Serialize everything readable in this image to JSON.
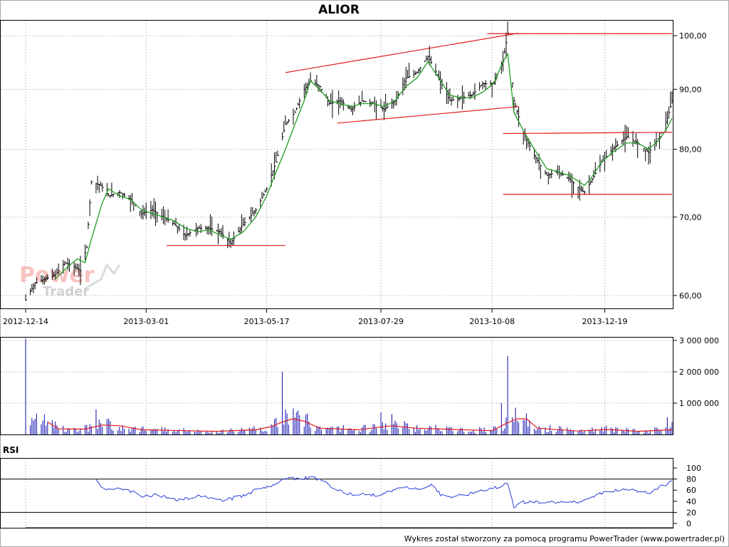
{
  "watermark": {
    "power": "Power",
    "trader": "Trader"
  },
  "footer": "Wykres został stworzony za pomocą programu PowerTrader (www.powertrader.pl)",
  "colors": {
    "price": "#000000",
    "ma": "#1f9e1f",
    "trendline": "#e21b1b",
    "volume": "#1f1fb4",
    "volume_ma": "#e21b1b",
    "rsi": "#2a3fd6",
    "grid": "#9a9a9a"
  },
  "chart_data": [
    {
      "type": "ohlc",
      "title": "ALIOR",
      "scale": "log",
      "ylim": [
        58.5,
        103
      ],
      "y_ticks": [
        "60,00",
        "70,00",
        "80,00",
        "90,00",
        "100,00"
      ],
      "x_ticks": [
        "2012-12-14",
        "2013-03-01",
        "2013-05-17",
        "2013-07-29",
        "2013-10-08",
        "2013-12-19"
      ],
      "x_range": [
        "2012-12-14",
        "2014-01-31"
      ],
      "grid": true,
      "series": [
        {
          "kind": "close",
          "points": [
            [
              "2012-12-14",
              59.5
            ],
            [
              "2012-12-20",
              61.5
            ],
            [
              "2013-01-02",
              62.5
            ],
            [
              "2013-01-08",
              64
            ],
            [
              "2013-01-14",
              63.5
            ],
            [
              "2013-01-18",
              63
            ],
            [
              "2013-01-22",
              66
            ],
            [
              "2013-01-25",
              75
            ],
            [
              "2013-01-31",
              74.5
            ],
            [
              "2013-02-05",
              73
            ],
            [
              "2013-02-12",
              73.5
            ],
            [
              "2013-02-19",
              72.5
            ],
            [
              "2013-02-26",
              70.5
            ],
            [
              "2013-03-05",
              71
            ],
            [
              "2013-03-12",
              70
            ],
            [
              "2013-03-19",
              69
            ],
            [
              "2013-03-26",
              67.5
            ],
            [
              "2013-04-03",
              68.5
            ],
            [
              "2013-04-10",
              68.5
            ],
            [
              "2013-04-17",
              68
            ],
            [
              "2013-04-24",
              66.5
            ],
            [
              "2013-05-02",
              69
            ],
            [
              "2013-05-10",
              71
            ],
            [
              "2013-05-17",
              74
            ],
            [
              "2013-05-23",
              78
            ],
            [
              "2013-05-29",
              84
            ],
            [
              "2013-06-04",
              86
            ],
            [
              "2013-06-10",
              90
            ],
            [
              "2013-06-14",
              91.5
            ],
            [
              "2013-06-20",
              90.5
            ],
            [
              "2013-06-26",
              87.5
            ],
            [
              "2013-07-03",
              88
            ],
            [
              "2013-07-10",
              86.5
            ],
            [
              "2013-07-17",
              88
            ],
            [
              "2013-07-24",
              87.5
            ],
            [
              "2013-07-31",
              86.5
            ],
            [
              "2013-08-07",
              88
            ],
            [
              "2013-08-14",
              92
            ],
            [
              "2013-08-21",
              93
            ],
            [
              "2013-08-28",
              96
            ],
            [
              "2013-09-04",
              92
            ],
            [
              "2013-09-11",
              88
            ],
            [
              "2013-09-18",
              88.5
            ],
            [
              "2013-09-25",
              89
            ],
            [
              "2013-10-02",
              91
            ],
            [
              "2013-10-09",
              91
            ],
            [
              "2013-10-15",
              95
            ],
            [
              "2013-10-18",
              100.5
            ],
            [
              "2013-10-22",
              88
            ],
            [
              "2013-10-28",
              82.5
            ],
            [
              "2013-11-04",
              79
            ],
            [
              "2013-11-12",
              76
            ],
            [
              "2013-11-19",
              76.5
            ],
            [
              "2013-11-26",
              75.5
            ],
            [
              "2013-12-03",
              74
            ],
            [
              "2013-12-06",
              73.5
            ],
            [
              "2013-12-10",
              75
            ],
            [
              "2013-12-17",
              78
            ],
            [
              "2013-12-24",
              80
            ],
            [
              "2014-01-02",
              82
            ],
            [
              "2014-01-09",
              81
            ],
            [
              "2014-01-16",
              79.5
            ],
            [
              "2014-01-23",
              82
            ],
            [
              "2014-01-28",
              85
            ],
            [
              "2014-01-31",
              88
            ]
          ]
        },
        {
          "kind": "moving_average",
          "points": [
            [
              "2013-01-02",
              62
            ],
            [
              "2013-01-10",
              63.5
            ],
            [
              "2013-01-16",
              64.5
            ],
            [
              "2013-01-21",
              64
            ],
            [
              "2013-01-25",
              67
            ],
            [
              "2013-02-01",
              72
            ],
            [
              "2013-02-05",
              74
            ],
            [
              "2013-02-12",
              73
            ],
            [
              "2013-02-19",
              72.5
            ],
            [
              "2013-02-26",
              71
            ],
            [
              "2013-03-05",
              70.5
            ],
            [
              "2013-03-12",
              70
            ],
            [
              "2013-03-19",
              69.5
            ],
            [
              "2013-03-26",
              68.5
            ],
            [
              "2013-04-03",
              68
            ],
            [
              "2013-04-10",
              68.3
            ],
            [
              "2013-04-17",
              67.6
            ],
            [
              "2013-04-24",
              67
            ],
            [
              "2013-05-02",
              68
            ],
            [
              "2013-05-10",
              70
            ],
            [
              "2013-05-17",
              73
            ],
            [
              "2013-05-23",
              76.5
            ],
            [
              "2013-05-29",
              80
            ],
            [
              "2013-06-04",
              84
            ],
            [
              "2013-06-10",
              88
            ],
            [
              "2013-06-14",
              91.5
            ],
            [
              "2013-06-20",
              90
            ],
            [
              "2013-06-26",
              88
            ],
            [
              "2013-07-03",
              87.5
            ],
            [
              "2013-07-10",
              87
            ],
            [
              "2013-07-17",
              87.5
            ],
            [
              "2013-07-24",
              87.5
            ],
            [
              "2013-07-31",
              87
            ],
            [
              "2013-08-07",
              88
            ],
            [
              "2013-08-14",
              90.5
            ],
            [
              "2013-08-21",
              92
            ],
            [
              "2013-08-28",
              95
            ],
            [
              "2013-09-04",
              92
            ],
            [
              "2013-09-11",
              89
            ],
            [
              "2013-09-18",
              88.5
            ],
            [
              "2013-09-25",
              88.5
            ],
            [
              "2013-10-02",
              89.5
            ],
            [
              "2013-10-09",
              91
            ],
            [
              "2013-10-15",
              95
            ],
            [
              "2013-10-18",
              96.5
            ],
            [
              "2013-10-22",
              86
            ],
            [
              "2013-10-28",
              83
            ],
            [
              "2013-11-04",
              80
            ],
            [
              "2013-11-12",
              77
            ],
            [
              "2013-11-19",
              76.5
            ],
            [
              "2013-11-26",
              76
            ],
            [
              "2013-12-03",
              75
            ],
            [
              "2013-12-06",
              74.5
            ],
            [
              "2013-12-10",
              75.5
            ],
            [
              "2013-12-17",
              78
            ],
            [
              "2013-12-24",
              79.5
            ],
            [
              "2014-01-02",
              81
            ],
            [
              "2014-01-09",
              81
            ],
            [
              "2014-01-16",
              80
            ],
            [
              "2014-01-23",
              81.5
            ],
            [
              "2014-01-28",
              83.5
            ],
            [
              "2014-01-31",
              85
            ]
          ]
        }
      ],
      "trendlines": [
        {
          "x": [
            "2013-03-14",
            "2013-05-29"
          ],
          "y": [
            66.2,
            66.2
          ]
        },
        {
          "x": [
            "2013-05-29",
            "2013-10-25"
          ],
          "y": [
            93,
            100.5
          ]
        },
        {
          "x": [
            "2013-07-01",
            "2013-10-25"
          ],
          "y": [
            84.2,
            87
          ]
        },
        {
          "x": [
            "2013-10-05",
            "2014-01-31"
          ],
          "y": [
            100.4,
            100.4
          ]
        },
        {
          "x": [
            "2013-10-15",
            "2014-01-31"
          ],
          "y": [
            82.5,
            82.7
          ]
        },
        {
          "x": [
            "2013-10-15",
            "2014-01-31"
          ],
          "y": [
            73.2,
            73.2
          ]
        }
      ]
    },
    {
      "type": "bar",
      "title": "",
      "ylim": [
        0,
        3000000
      ],
      "y_ticks": [
        "1 000 000",
        "2 000 000",
        "3 000 000"
      ],
      "spikes": [
        [
          "2012-12-14",
          3050000
        ],
        [
          "2012-12-20",
          500000
        ],
        [
          "2013-01-28",
          800000
        ],
        [
          "2013-05-27",
          2000000
        ],
        [
          "2013-05-29",
          800000
        ],
        [
          "2013-07-29",
          700000
        ],
        [
          "2013-08-05",
          650000
        ],
        [
          "2013-10-14",
          1000000
        ],
        [
          "2013-10-18",
          2500000
        ],
        [
          "2013-10-21",
          550000
        ],
        [
          "2014-01-28",
          550000
        ],
        [
          "2014-01-31",
          400000
        ]
      ],
      "series": [
        {
          "kind": "volume_average",
          "points": [
            [
              "2012-12-28",
              400000
            ],
            [
              "2013-01-04",
              180000
            ],
            [
              "2013-01-21",
              170000
            ],
            [
              "2013-02-01",
              300000
            ],
            [
              "2013-02-12",
              280000
            ],
            [
              "2013-02-26",
              150000
            ],
            [
              "2013-04-15",
              100000
            ],
            [
              "2013-05-10",
              150000
            ],
            [
              "2013-05-20",
              250000
            ],
            [
              "2013-05-27",
              400000
            ],
            [
              "2013-06-03",
              500000
            ],
            [
              "2013-06-10",
              420000
            ],
            [
              "2013-06-20",
              200000
            ],
            [
              "2013-07-15",
              150000
            ],
            [
              "2013-08-05",
              280000
            ],
            [
              "2013-08-20",
              200000
            ],
            [
              "2013-10-08",
              120000
            ],
            [
              "2013-10-17",
              350000
            ],
            [
              "2013-10-24",
              500000
            ],
            [
              "2013-10-30",
              500000
            ],
            [
              "2013-11-06",
              200000
            ],
            [
              "2013-12-02",
              110000
            ],
            [
              "2013-12-20",
              160000
            ],
            [
              "2014-01-09",
              100000
            ],
            [
              "2014-01-31",
              150000
            ]
          ]
        }
      ]
    },
    {
      "type": "line",
      "title": "RSI",
      "ylim": [
        0,
        100
      ],
      "y_ticks": [
        "0",
        "20",
        "40",
        "60",
        "80",
        "100"
      ],
      "reference_lines": [
        20,
        80
      ],
      "series": [
        {
          "kind": "rsi",
          "points": [
            [
              "2013-01-28",
              78
            ],
            [
              "2013-02-01",
              62
            ],
            [
              "2013-02-08",
              63
            ],
            [
              "2013-02-15",
              60
            ],
            [
              "2013-02-22",
              55
            ],
            [
              "2013-02-28",
              48
            ],
            [
              "2013-03-07",
              52
            ],
            [
              "2013-03-14",
              47
            ],
            [
              "2013-03-21",
              43
            ],
            [
              "2013-03-28",
              45
            ],
            [
              "2013-04-04",
              50
            ],
            [
              "2013-04-11",
              47
            ],
            [
              "2013-04-18",
              42
            ],
            [
              "2013-04-25",
              45
            ],
            [
              "2013-05-02",
              50
            ],
            [
              "2013-05-10",
              60
            ],
            [
              "2013-05-17",
              65
            ],
            [
              "2013-05-24",
              75
            ],
            [
              "2013-05-31",
              82
            ],
            [
              "2013-06-07",
              80
            ],
            [
              "2013-06-14",
              83
            ],
            [
              "2013-06-21",
              78
            ],
            [
              "2013-06-28",
              65
            ],
            [
              "2013-07-05",
              55
            ],
            [
              "2013-07-12",
              53
            ],
            [
              "2013-07-19",
              54
            ],
            [
              "2013-07-26",
              50
            ],
            [
              "2013-08-02",
              56
            ],
            [
              "2013-08-09",
              62
            ],
            [
              "2013-08-16",
              65
            ],
            [
              "2013-08-23",
              60
            ],
            [
              "2013-08-30",
              70
            ],
            [
              "2013-09-06",
              50
            ],
            [
              "2013-09-13",
              48
            ],
            [
              "2013-09-20",
              52
            ],
            [
              "2013-09-27",
              55
            ],
            [
              "2013-10-04",
              60
            ],
            [
              "2013-10-11",
              65
            ],
            [
              "2013-10-18",
              72
            ],
            [
              "2013-10-22",
              28
            ],
            [
              "2013-10-28",
              38
            ],
            [
              "2013-11-04",
              38
            ],
            [
              "2013-11-12",
              40
            ],
            [
              "2013-11-19",
              38
            ],
            [
              "2013-11-26",
              38
            ],
            [
              "2013-12-03",
              38
            ],
            [
              "2013-12-10",
              48
            ],
            [
              "2013-12-17",
              55
            ],
            [
              "2013-12-24",
              58
            ],
            [
              "2014-01-02",
              62
            ],
            [
              "2014-01-09",
              58
            ],
            [
              "2014-01-16",
              55
            ],
            [
              "2014-01-23",
              65
            ],
            [
              "2014-01-28",
              72
            ],
            [
              "2014-01-31",
              78
            ]
          ]
        }
      ]
    }
  ]
}
